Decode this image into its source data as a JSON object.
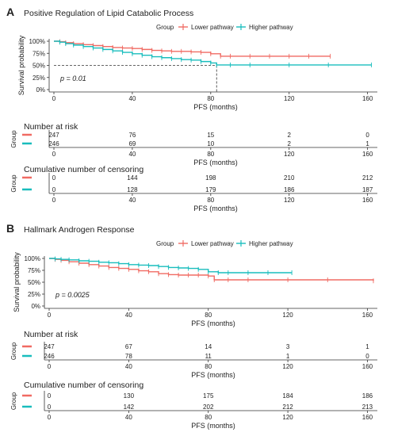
{
  "colors": {
    "lower": "#f06b63",
    "higher": "#19bdbd",
    "text": "#222222"
  },
  "chart_data": [
    {
      "panel": "A",
      "title": "Positive Regulation of Lipid Catabolic Process",
      "type": "line",
      "legend": {
        "title": "Group",
        "placement": "top"
      },
      "ylabel": "Survival probability",
      "xlabel": "PFS (months)",
      "xlim": [
        0,
        165
      ],
      "ylim": [
        0,
        1
      ],
      "yticks": [
        "0%",
        "25%",
        "50%",
        "75%",
        "100%"
      ],
      "xticks": [
        0,
        40,
        80,
        120,
        160
      ],
      "pvalue": "p = 0.01",
      "median_line": {
        "y": 0.5,
        "x": 83
      },
      "series": [
        {
          "name": "Lower pathway",
          "color_key": "lower",
          "x": [
            0,
            3,
            6,
            10,
            15,
            20,
            25,
            30,
            35,
            40,
            45,
            50,
            55,
            60,
            65,
            70,
            75,
            80,
            85,
            90,
            100,
            110,
            120,
            130,
            141
          ],
          "y": [
            1.0,
            0.99,
            0.97,
            0.95,
            0.93,
            0.91,
            0.89,
            0.87,
            0.86,
            0.85,
            0.83,
            0.81,
            0.8,
            0.79,
            0.79,
            0.78,
            0.77,
            0.74,
            0.69,
            0.69,
            0.69,
            0.69,
            0.69,
            0.69,
            0.69
          ]
        },
        {
          "name": "Higher pathway",
          "color_key": "higher",
          "x": [
            0,
            3,
            6,
            10,
            15,
            20,
            25,
            30,
            35,
            40,
            45,
            50,
            55,
            60,
            65,
            70,
            75,
            80,
            83,
            90,
            100,
            120,
            140,
            162
          ],
          "y": [
            1.0,
            0.98,
            0.95,
            0.92,
            0.89,
            0.86,
            0.83,
            0.8,
            0.77,
            0.74,
            0.71,
            0.68,
            0.66,
            0.64,
            0.62,
            0.61,
            0.58,
            0.55,
            0.51,
            0.51,
            0.51,
            0.51,
            0.51,
            0.51
          ]
        }
      ],
      "risk_table": {
        "title": "Number at risk",
        "x": [
          0,
          40,
          80,
          120,
          160
        ],
        "lower": [
          247,
          76,
          15,
          2,
          0
        ],
        "higher": [
          246,
          69,
          10,
          2,
          1
        ]
      },
      "censor_table": {
        "title": "Cumulative number of censoring",
        "x": [
          0,
          40,
          80,
          120,
          160
        ],
        "lower": [
          0,
          144,
          198,
          210,
          212
        ],
        "higher": [
          0,
          128,
          179,
          186,
          187
        ]
      },
      "table_ylabel": "Group"
    },
    {
      "panel": "B",
      "title": "Hallmark Androgen Response",
      "type": "line",
      "legend": {
        "title": "Group",
        "placement": "top"
      },
      "ylabel": "Survival probability",
      "xlabel": "PFS (months)",
      "xlim": [
        0,
        165
      ],
      "ylim": [
        0,
        1
      ],
      "yticks": [
        "0%",
        "25%",
        "50%",
        "75%",
        "100%"
      ],
      "xticks": [
        0,
        40,
        80,
        120,
        160
      ],
      "pvalue": "p = 0.0025",
      "series": [
        {
          "name": "Lower pathway",
          "color_key": "lower",
          "x": [
            0,
            3,
            6,
            10,
            15,
            20,
            25,
            30,
            35,
            40,
            45,
            50,
            55,
            60,
            65,
            70,
            75,
            80,
            83,
            90,
            100,
            120,
            140,
            163
          ],
          "y": [
            1.0,
            0.98,
            0.96,
            0.93,
            0.9,
            0.87,
            0.84,
            0.81,
            0.79,
            0.77,
            0.74,
            0.72,
            0.68,
            0.66,
            0.65,
            0.65,
            0.65,
            0.63,
            0.55,
            0.55,
            0.55,
            0.55,
            0.55,
            0.53
          ]
        },
        {
          "name": "Higher pathway",
          "color_key": "higher",
          "x": [
            0,
            3,
            6,
            10,
            15,
            20,
            25,
            30,
            35,
            40,
            45,
            50,
            55,
            60,
            65,
            70,
            75,
            80,
            85,
            90,
            100,
            110,
            122
          ],
          "y": [
            1.0,
            0.99,
            0.98,
            0.97,
            0.95,
            0.94,
            0.92,
            0.91,
            0.89,
            0.87,
            0.86,
            0.85,
            0.83,
            0.81,
            0.8,
            0.79,
            0.77,
            0.72,
            0.7,
            0.7,
            0.7,
            0.7,
            0.7
          ]
        }
      ],
      "risk_table": {
        "title": "Number at risk",
        "x": [
          0,
          40,
          80,
          120,
          160
        ],
        "lower": [
          247,
          67,
          14,
          3,
          1
        ],
        "higher": [
          246,
          78,
          11,
          1,
          0
        ]
      },
      "censor_table": {
        "title": "Cumulative number of censoring",
        "x": [
          0,
          40,
          80,
          120,
          160
        ],
        "lower": [
          0,
          130,
          175,
          184,
          186
        ],
        "higher": [
          0,
          142,
          202,
          212,
          213
        ]
      },
      "table_ylabel": "Group"
    }
  ]
}
